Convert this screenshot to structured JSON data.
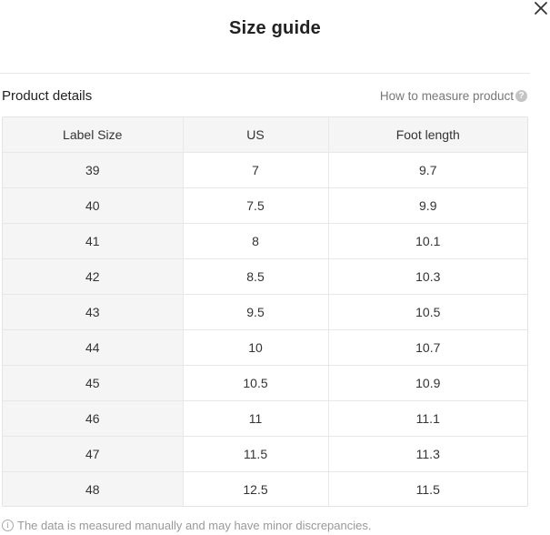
{
  "modal": {
    "title": "Size guide",
    "close_icon": "close-icon"
  },
  "section": {
    "title": "Product details",
    "measure_link": "How to measure product",
    "help_icon": "question-circle-icon"
  },
  "table": {
    "headers": [
      "Label Size",
      "US",
      "Foot length"
    ],
    "rows": [
      [
        "39",
        "7",
        "9.7"
      ],
      [
        "40",
        "7.5",
        "9.9"
      ],
      [
        "41",
        "8",
        "10.1"
      ],
      [
        "42",
        "8.5",
        "10.3"
      ],
      [
        "43",
        "9.5",
        "10.5"
      ],
      [
        "44",
        "10",
        "10.7"
      ],
      [
        "45",
        "10.5",
        "10.9"
      ],
      [
        "46",
        "11",
        "11.1"
      ],
      [
        "47",
        "11.5",
        "11.3"
      ],
      [
        "48",
        "12.5",
        "11.5"
      ]
    ]
  },
  "footer": {
    "note": "The data is measured manually and may have minor discrepancies.",
    "info_icon": "info-circle-icon"
  },
  "colors": {
    "header_bg": "#f5f5f5",
    "border": "#e8e8e8",
    "muted_text": "#999999"
  }
}
